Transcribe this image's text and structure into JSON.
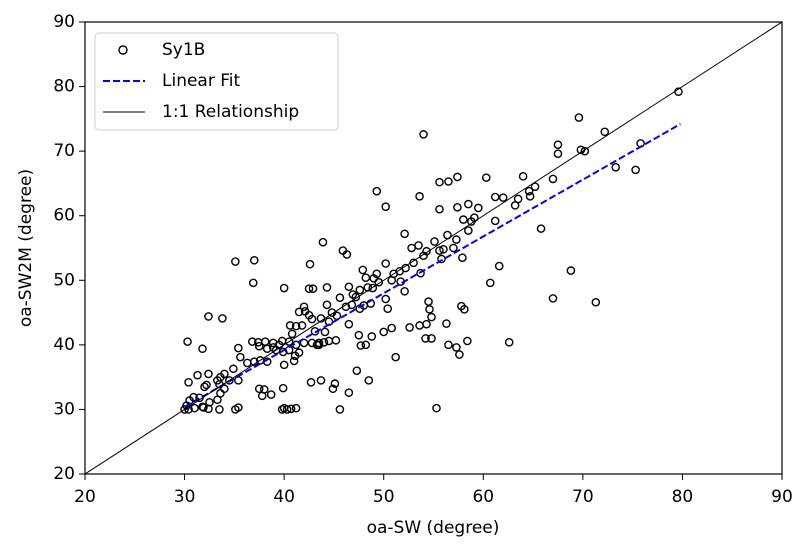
{
  "chart_data": {
    "type": "scatter",
    "x_label": "oa-SW (degree)",
    "y_label": "oa-SW2M (degree)",
    "xlim": [
      20,
      90
    ],
    "ylim": [
      20,
      90
    ],
    "xticks": [
      20,
      30,
      40,
      50,
      60,
      70,
      80,
      90
    ],
    "yticks": [
      20,
      30,
      40,
      50,
      60,
      70,
      80,
      90
    ],
    "grid": false,
    "legend": "upper left",
    "series": [
      {
        "name": "Sy1B",
        "style": "hollow-markers",
        "color": "#000000",
        "x": [
          54.0,
          69.6,
          79.6,
          72.2,
          67.5,
          67.5,
          69.8,
          70.2,
          75.8,
          73.3,
          75.3,
          49.3,
          50.2,
          53.6,
          55.6,
          56.5,
          57.4,
          60.3,
          64.0,
          65.2,
          64.6,
          64.7,
          63.5,
          62.0,
          61.2,
          63.2,
          59.5,
          58.5,
          55.6,
          57.4,
          58.0,
          58.8,
          59.1,
          61.2,
          67.0,
          65.8,
          58.5,
          57.3,
          52.1,
          55.1,
          56.4,
          53.5,
          52.8,
          54.3,
          55.6,
          56.0,
          57.0,
          55.8,
          54.0,
          53.0,
          53.7,
          52.2,
          51.6,
          51.0,
          52.1,
          50.2,
          49.0,
          49.3,
          50.8,
          47.9,
          48.2,
          48.9,
          49.5,
          50.2,
          50.4,
          51.7,
          48.4,
          47.6,
          47.2,
          46.8,
          46.5,
          46.9,
          45.9,
          46.3,
          43.9,
          37.0,
          35.1,
          42.6,
          36.9,
          40.0,
          42.5,
          42.9,
          44.3,
          45.6,
          44.3,
          46.2,
          45.3,
          47.6,
          48.0,
          48.7,
          44.8,
          43.7,
          44.5,
          42.5,
          42.8,
          41.5,
          42.0,
          42.1,
          41.8,
          41.2,
          40.6,
          40.8,
          43.1,
          44.1,
          43.5,
          43.3,
          42.0,
          41.2,
          40.5,
          39.8,
          38.9,
          38.1,
          37.4,
          36.8,
          37.5,
          38.3,
          39.2,
          39.9,
          40.5,
          41.1,
          41.5,
          41.0,
          40.0,
          38.3,
          37.6,
          37.0,
          36.3,
          35.6,
          35.4,
          34.9,
          34.0,
          33.6,
          33.3,
          33.5,
          32.4,
          31.3,
          32.2,
          32.0,
          30.4,
          30.3,
          31.8,
          32.4,
          33.8,
          34.5,
          35.4,
          35.1,
          35.4,
          34.0,
          33.6,
          33.3,
          32.5,
          31.8,
          31.5,
          30.9,
          30.5,
          30.2,
          30.0,
          30.4,
          31.0,
          31.9,
          32.4,
          33.5,
          37.5,
          38.0,
          37.8,
          38.7,
          39.9,
          39.8,
          40.3,
          40.0,
          40.7,
          41.2,
          43.7,
          42.7,
          44.9,
          45.1,
          45.6,
          46.5,
          47.3,
          48.5,
          47.7,
          48.2,
          47.5,
          48.8,
          46.5,
          45.2,
          44.5,
          50.0,
          50.8,
          51.2,
          53.6,
          52.6,
          54.3,
          54.2,
          54.8,
          54.8,
          54.5,
          54.6,
          56.3,
          56.5,
          57.3,
          57.6,
          58.4,
          57.8,
          58.1,
          55.3,
          60.7,
          61.6,
          62.6,
          67.0,
          68.8,
          71.3,
          57.9,
          43.5,
          42.8,
          44.0,
          39.5,
          38.9
        ],
        "values": [
          72.6,
          75.2,
          79.2,
          73.0,
          71.0,
          69.6,
          70.2,
          70.0,
          71.2,
          67.5,
          67.1,
          63.8,
          61.4,
          63.0,
          65.2,
          65.3,
          66.0,
          65.9,
          66.1,
          64.5,
          63.8,
          63.0,
          62.6,
          62.8,
          62.9,
          61.6,
          61.2,
          61.8,
          61.0,
          61.3,
          59.4,
          59.1,
          59.7,
          59.2,
          65.7,
          58.0,
          57.7,
          56.3,
          57.2,
          56.0,
          57.0,
          55.4,
          55.0,
          54.5,
          54.6,
          54.8,
          55.0,
          53.3,
          53.8,
          52.7,
          51.1,
          51.9,
          51.4,
          51.0,
          48.3,
          52.6,
          50.3,
          51.0,
          50.0,
          51.6,
          50.4,
          48.8,
          49.7,
          47.1,
          45.6,
          49.8,
          48.9,
          48.5,
          47.4,
          46.2,
          49.0,
          47.8,
          54.6,
          54.0,
          55.9,
          53.1,
          52.9,
          52.5,
          49.6,
          48.8,
          48.7,
          48.7,
          48.9,
          47.3,
          46.2,
          45.9,
          44.5,
          45.6,
          46.1,
          46.4,
          45.0,
          44.1,
          43.6,
          44.6,
          44.0,
          45.1,
          45.9,
          45.2,
          43.0,
          42.9,
          43.0,
          41.7,
          42.1,
          42.0,
          40.3,
          40.0,
          40.3,
          40.0,
          40.5,
          40.6,
          40.3,
          40.5,
          40.4,
          40.5,
          39.8,
          39.4,
          39.2,
          38.9,
          39.2,
          38.3,
          38.8,
          37.5,
          36.9,
          37.4,
          37.6,
          37.4,
          37.2,
          38.1,
          39.5,
          36.3,
          35.5,
          35.0,
          34.5,
          33.9,
          35.5,
          35.3,
          33.8,
          33.5,
          34.2,
          40.5,
          39.4,
          44.4,
          44.1,
          34.5,
          34.5,
          30.0,
          30.3,
          33.2,
          32.5,
          31.5,
          31.1,
          30.4,
          31.8,
          31.9,
          31.4,
          30.6,
          30.0,
          30.0,
          30.2,
          30.3,
          30.1,
          30.0,
          33.2,
          33.1,
          32.1,
          32.3,
          33.3,
          30.0,
          30.0,
          30.2,
          30.1,
          30.2,
          34.5,
          34.2,
          33.2,
          34.0,
          30.0,
          32.6,
          36.0,
          34.5,
          39.9,
          40.0,
          41.5,
          41.3,
          43.2,
          40.7,
          40.6,
          42.0,
          42.6,
          38.1,
          43.0,
          42.7,
          43.2,
          41.0,
          41.0,
          44.3,
          46.7,
          45.5,
          43.3,
          40.0,
          39.6,
          38.5,
          40.6,
          46.0,
          45.5,
          30.2,
          49.6,
          52.2,
          40.4,
          47.2,
          51.5,
          46.6,
          53.5,
          40.0,
          40.3,
          40.4,
          40.0,
          39.6
        ]
      },
      {
        "name": "Linear Fit",
        "style": "dashed-line",
        "color": "#0000ff",
        "x": [
          30.0,
          79.8
        ],
        "values": [
          30.4,
          74.2
        ]
      },
      {
        "name": "1:1 Relationship",
        "style": "solid-line",
        "color": "#000000",
        "x": [
          20,
          90
        ],
        "values": [
          20,
          90
        ]
      }
    ]
  }
}
